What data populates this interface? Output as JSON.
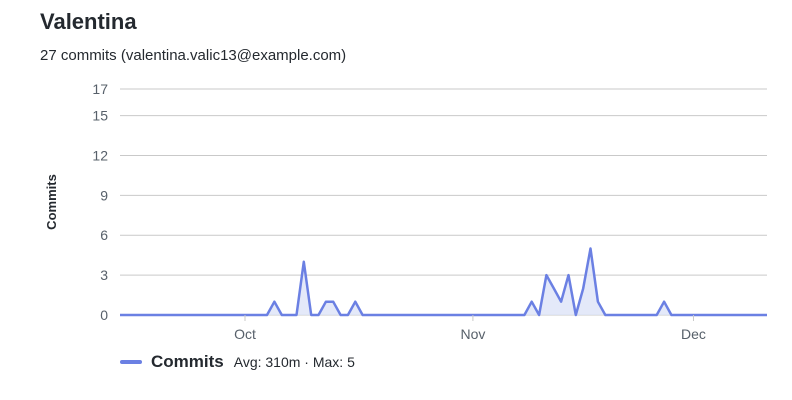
{
  "header": {
    "title": "Valentina",
    "subtitle": "27 commits (valentina.valic13@example.com)"
  },
  "legend": {
    "series_name": "Commits",
    "stats": "Avg: 310m · Max: 5"
  },
  "colors": {
    "line": "#6b80e3",
    "fill": "#dde3f8",
    "grid": "#c9c9c9"
  },
  "chart_data": {
    "type": "area",
    "ylabel": "Commits",
    "ylim": [
      0,
      17
    ],
    "yticks": [
      0,
      3,
      6,
      9,
      12,
      15,
      17
    ],
    "x_start": "2023-09-14",
    "x_end": "2023-12-11",
    "xticks": [
      {
        "date": "2023-10-01",
        "label": "Oct"
      },
      {
        "date": "2023-11-01",
        "label": "Nov"
      },
      {
        "date": "2023-12-01",
        "label": "Dec"
      }
    ],
    "grid": true,
    "legend_position": "bottom-left",
    "series": [
      {
        "name": "Commits",
        "points": [
          {
            "x": "2023-09-14",
            "y": 0
          },
          {
            "x": "2023-10-04",
            "y": 0
          },
          {
            "x": "2023-10-05",
            "y": 1
          },
          {
            "x": "2023-10-06",
            "y": 0
          },
          {
            "x": "2023-10-08",
            "y": 0
          },
          {
            "x": "2023-10-09",
            "y": 4
          },
          {
            "x": "2023-10-10",
            "y": 0
          },
          {
            "x": "2023-10-11",
            "y": 0
          },
          {
            "x": "2023-10-12",
            "y": 1
          },
          {
            "x": "2023-10-13",
            "y": 1
          },
          {
            "x": "2023-10-14",
            "y": 0
          },
          {
            "x": "2023-10-15",
            "y": 0
          },
          {
            "x": "2023-10-16",
            "y": 1
          },
          {
            "x": "2023-10-17",
            "y": 0
          },
          {
            "x": "2023-11-08",
            "y": 0
          },
          {
            "x": "2023-11-09",
            "y": 1
          },
          {
            "x": "2023-11-10",
            "y": 0
          },
          {
            "x": "2023-11-11",
            "y": 3
          },
          {
            "x": "2023-11-12",
            "y": 2
          },
          {
            "x": "2023-11-13",
            "y": 1
          },
          {
            "x": "2023-11-14",
            "y": 3
          },
          {
            "x": "2023-11-15",
            "y": 0
          },
          {
            "x": "2023-11-16",
            "y": 2
          },
          {
            "x": "2023-11-17",
            "y": 5
          },
          {
            "x": "2023-11-18",
            "y": 1
          },
          {
            "x": "2023-11-19",
            "y": 0
          },
          {
            "x": "2023-11-26",
            "y": 0
          },
          {
            "x": "2023-11-27",
            "y": 1
          },
          {
            "x": "2023-11-28",
            "y": 0
          },
          {
            "x": "2023-12-11",
            "y": 0
          }
        ]
      }
    ]
  }
}
